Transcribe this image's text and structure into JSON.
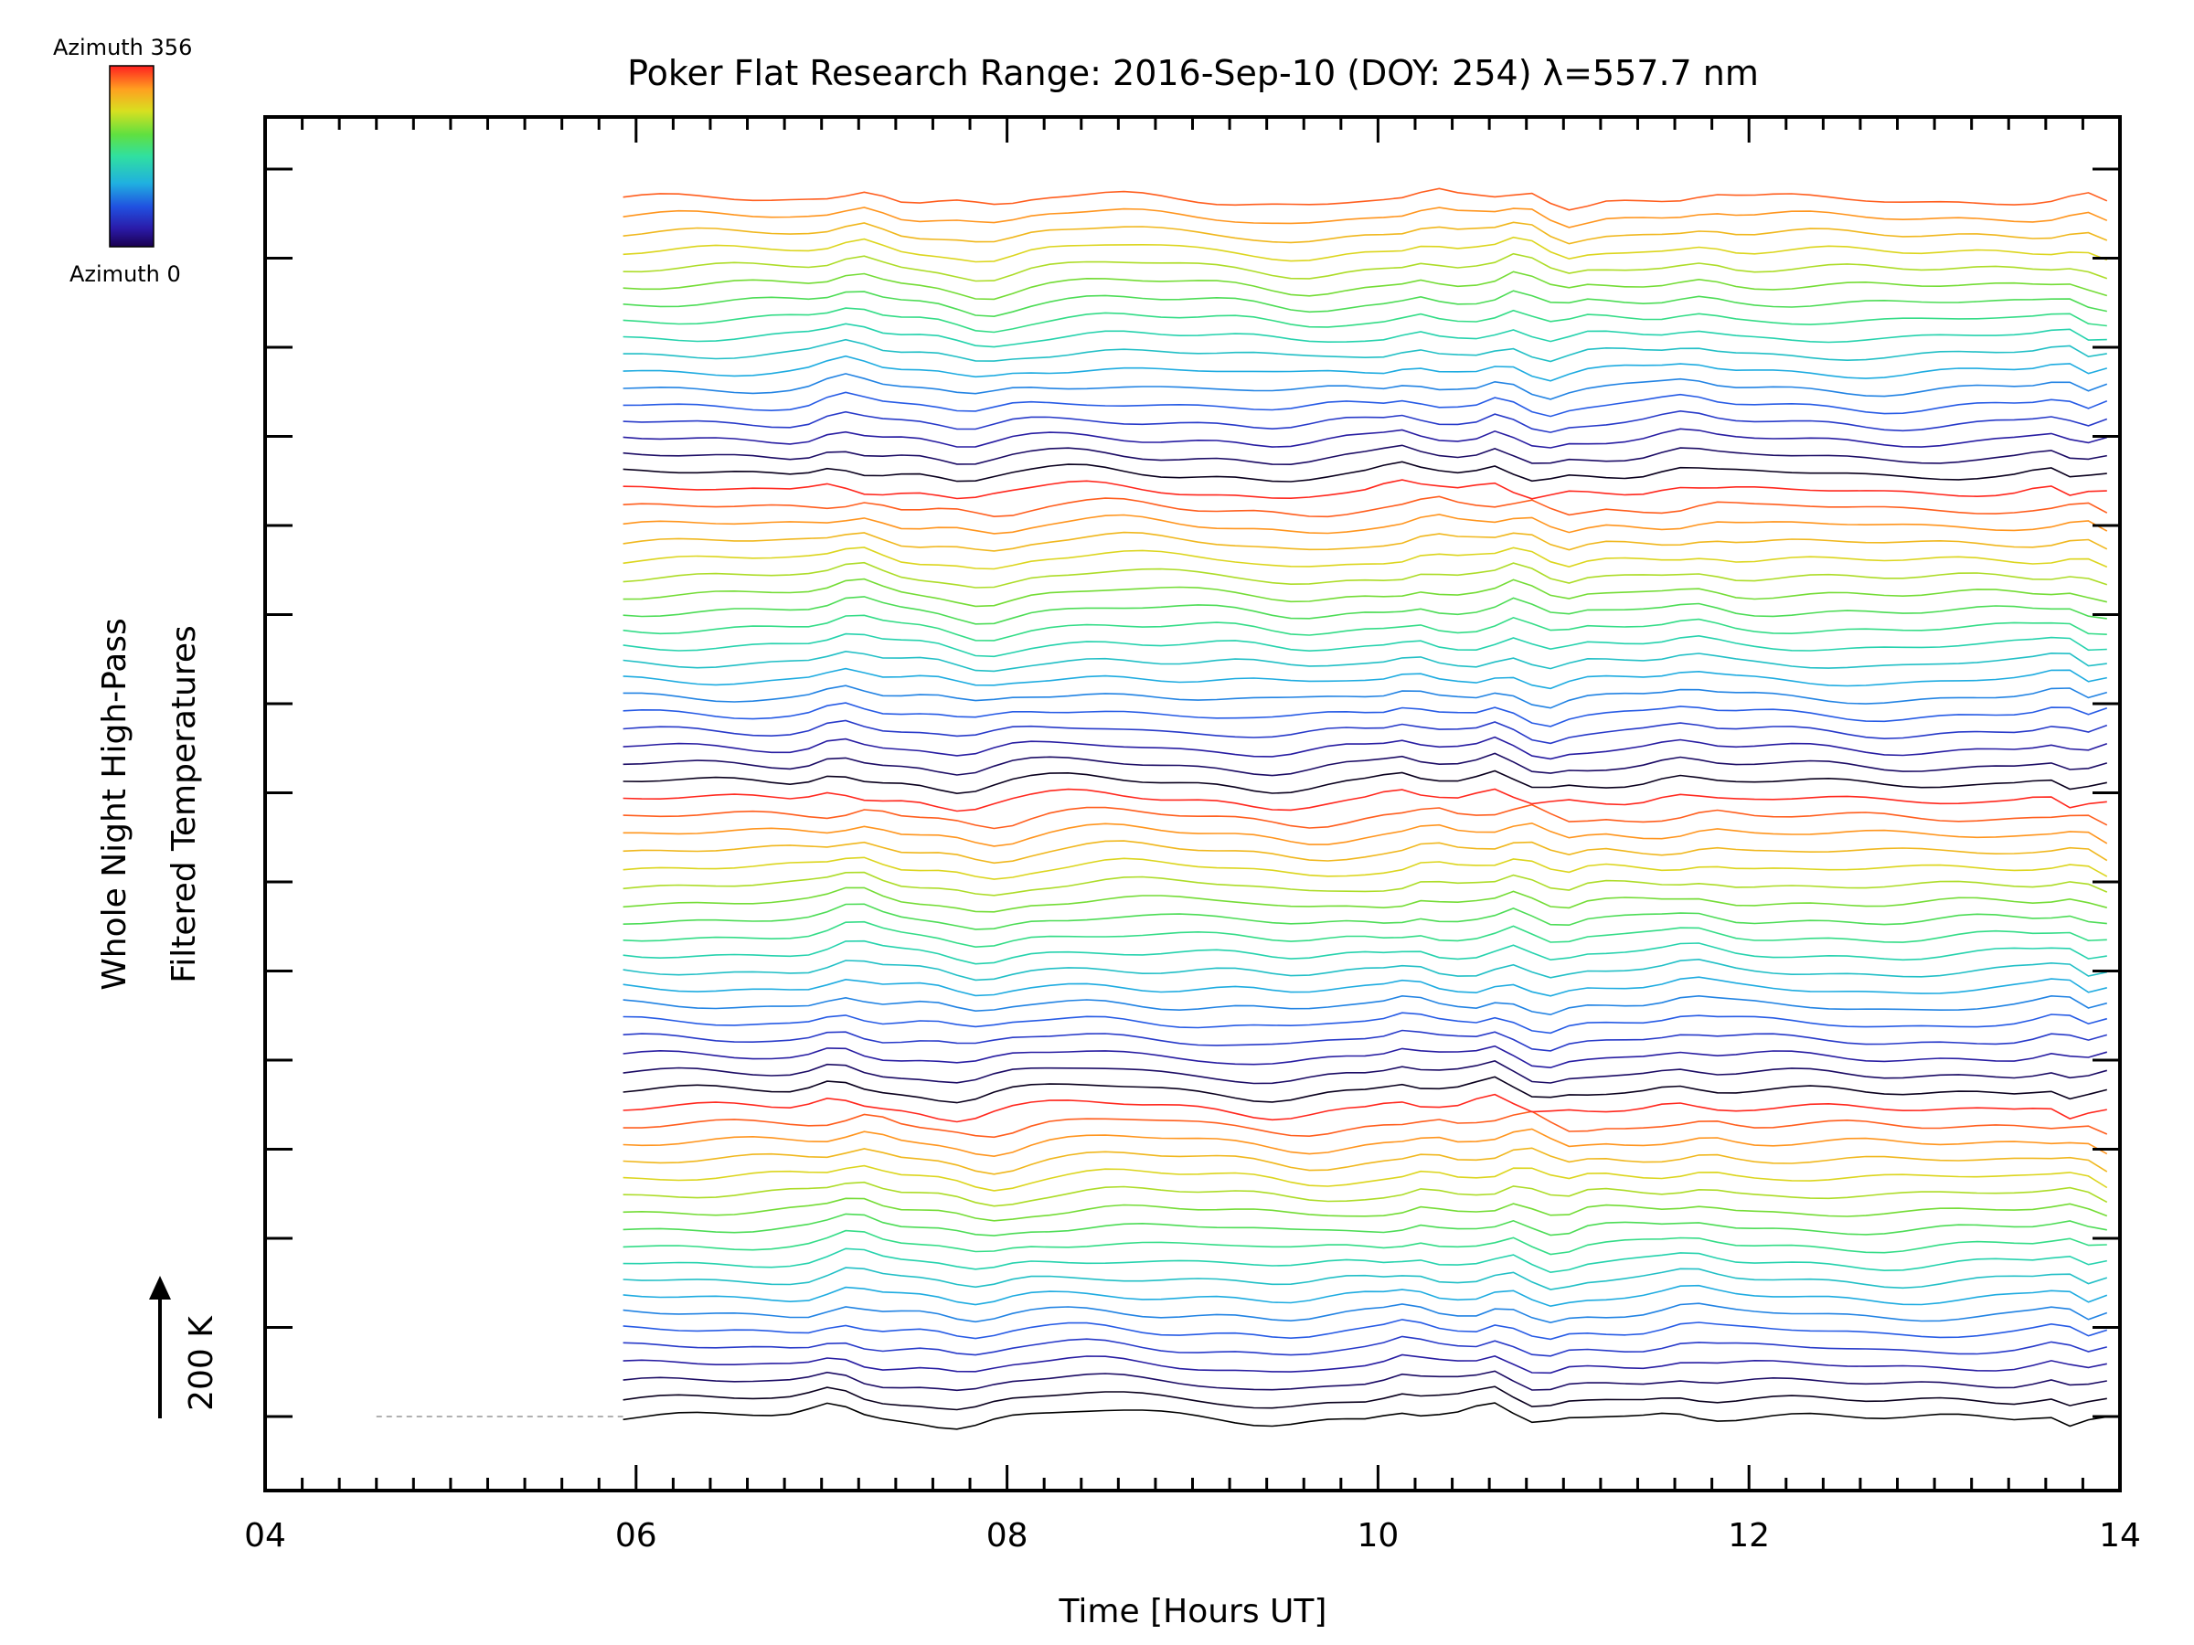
{
  "chart_data": {
    "type": "line",
    "title": "Poker Flat Research Range: 2016-Sep-10 (DOY: 254) λ=557.7 nm",
    "xlabel": "Time [Hours UT]",
    "ylabel_line1": "Whole Night High-Pass",
    "ylabel_line2": "Filtered Temperatures",
    "scale_label": "200 K",
    "xlim": [
      4,
      14
    ],
    "x_tick_labels": [
      "04",
      "06",
      "08",
      "10",
      "12",
      "14"
    ],
    "x_ticks": [
      4,
      6,
      8,
      10,
      12,
      14
    ],
    "data_start_hour": 5.93,
    "data_end_hour": 14.0,
    "sample_step_hours": 0.1,
    "stack_count": 72,
    "y_tick_count": 15,
    "colorbar": {
      "top_label": "Azimuth 356",
      "bottom_label": "Azimuth 0",
      "min_azimuth": 0,
      "max_azimuth": 356,
      "colormap": "rainbow"
    },
    "features": [
      {
        "hour": 7.05,
        "amplitude": 7,
        "width": 0.14
      },
      {
        "hour": 7.75,
        "amplitude": -6,
        "width": 0.18
      },
      {
        "hour": 8.4,
        "amplitude": 3,
        "width": 0.3
      },
      {
        "hour": 9.45,
        "amplitude": -4,
        "width": 0.25
      },
      {
        "hour": 10.1,
        "amplitude": 4,
        "width": 0.1
      },
      {
        "hour": 10.6,
        "amplitude": 6,
        "width": 0.09
      },
      {
        "hour": 10.85,
        "amplitude": -5,
        "width": 0.1
      },
      {
        "hour": 11.6,
        "amplitude": 4,
        "width": 0.15
      },
      {
        "hour": 12.7,
        "amplitude": -2,
        "width": 0.3
      },
      {
        "hour": 13.6,
        "amplitude": 3,
        "width": 0.12
      },
      {
        "hour": 13.75,
        "amplitude": -5,
        "width": 0.06
      }
    ]
  }
}
